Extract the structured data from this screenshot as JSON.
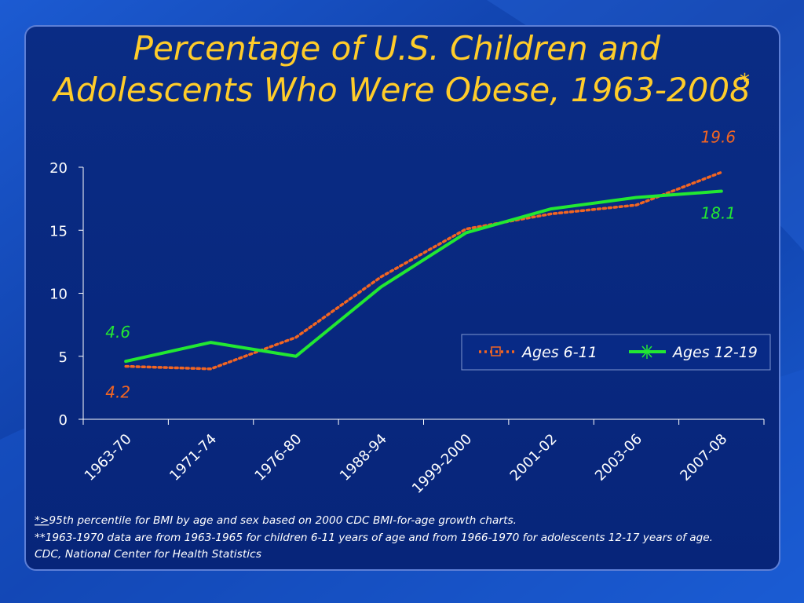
{
  "slide": {
    "title_line1": "Percentage of U.S. Children and",
    "title_line2": "Adolescents Who Were Obese, 1963-2008",
    "title_marker": "*"
  },
  "colors": {
    "title": "#ffcc2a",
    "series_6_11": "#f26522",
    "series_12_19": "#22e832",
    "axis_text": "#ffffff",
    "panel_bg": "#082a86",
    "panel_border": "#5d7fd6"
  },
  "chart_data": {
    "type": "line",
    "categories": [
      "1963-70",
      "1971-74",
      "1976-80",
      "1988-94",
      "1999-2000",
      "2001-02",
      "2003-06",
      "2007-08"
    ],
    "ylim": [
      0,
      20
    ],
    "yticks": [
      0,
      5,
      10,
      15,
      20
    ],
    "grid": false,
    "legend_position": "right",
    "series": [
      {
        "name": "Ages 6-11",
        "values": [
          4.2,
          4.0,
          6.5,
          11.3,
          15.1,
          16.3,
          17.0,
          19.6
        ],
        "style": "dotted",
        "marker": "square"
      },
      {
        "name": "Ages 12-19",
        "values": [
          4.6,
          6.1,
          5.0,
          10.5,
          14.8,
          16.7,
          17.6,
          18.1
        ],
        "style": "solid",
        "marker": "star"
      }
    ],
    "annotations": [
      {
        "text": "4.6",
        "series": "Ages 12-19",
        "index": 0
      },
      {
        "text": "4.2",
        "series": "Ages 6-11",
        "index": 0
      },
      {
        "text": "19.6",
        "series": "Ages 6-11",
        "index": 7
      },
      {
        "text": "18.1",
        "series": "Ages 12-19",
        "index": 7
      }
    ]
  },
  "footnotes": {
    "line1_marker": "*>",
    "line1_text": "95th percentile for BMI by age and sex based on 2000 CDC BMI-for-age growth charts.",
    "line2": "**1963-1970 data are from 1963-1965 for children 6-11 years of age and from 1966-1970 for adolescents 12-17 years of age.",
    "line3": "CDC, National Center for Health Statistics"
  }
}
